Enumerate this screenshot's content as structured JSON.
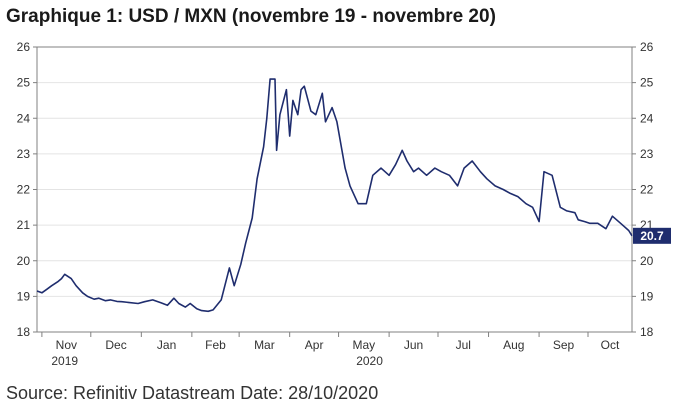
{
  "title": "Graphique 1: USD / MXN (novembre 19 - novembre 20)",
  "source": "Source: Refinitiv Datastream Date: 28/10/2020",
  "colors": {
    "line": "#1f2d6e",
    "grid": "#e4e4e4",
    "axis": "#808080",
    "badge": "#1f2d6e"
  },
  "chart_data": {
    "type": "line",
    "title": "Graphique 1: USD / MXN (novembre 19 - novembre 20)",
    "xlabel": "",
    "ylabel": "",
    "ylim": [
      18,
      26
    ],
    "y_ticks": [
      18,
      19,
      20,
      21,
      22,
      23,
      24,
      25,
      26
    ],
    "y_axes": [
      "left",
      "right"
    ],
    "grid": "horizontal",
    "x_range": [
      "2019-10-29",
      "2020-10-28"
    ],
    "x_ticks": [
      {
        "label": "Nov",
        "date": "2019-11-01"
      },
      {
        "label": "Dec",
        "date": "2019-12-01"
      },
      {
        "label": "Jan",
        "date": "2020-01-01"
      },
      {
        "label": "Feb",
        "date": "2020-02-01"
      },
      {
        "label": "Mar",
        "date": "2020-03-01"
      },
      {
        "label": "Apr",
        "date": "2020-04-01"
      },
      {
        "label": "May",
        "date": "2020-05-01"
      },
      {
        "label": "Jun",
        "date": "2020-06-01"
      },
      {
        "label": "Jul",
        "date": "2020-07-01"
      },
      {
        "label": "Aug",
        "date": "2020-08-01"
      },
      {
        "label": "Sep",
        "date": "2020-09-01"
      },
      {
        "label": "Oct",
        "date": "2020-10-01"
      }
    ],
    "year_labels": [
      {
        "label": "2019",
        "date": "2019-11-15"
      },
      {
        "label": "2020",
        "date": "2020-05-20"
      }
    ],
    "last_value_label": "20.7",
    "series": [
      {
        "x": [
          "2019-10-29",
          "2019-11-01",
          "2019-11-04",
          "2019-11-07",
          "2019-11-11",
          "2019-11-13",
          "2019-11-15",
          "2019-11-19",
          "2019-11-22",
          "2019-11-26",
          "2019-11-29",
          "2019-12-03",
          "2019-12-06",
          "2019-12-10",
          "2019-12-13",
          "2019-12-17",
          "2019-12-20",
          "2019-12-24",
          "2019-12-30",
          "2020-01-03",
          "2020-01-08",
          "2020-01-13",
          "2020-01-17",
          "2020-01-21",
          "2020-01-24",
          "2020-01-28",
          "2020-01-31",
          "2020-02-04",
          "2020-02-07",
          "2020-02-11",
          "2020-02-14",
          "2020-02-19",
          "2020-02-24",
          "2020-02-27",
          "2020-03-02",
          "2020-03-05",
          "2020-03-09",
          "2020-03-12",
          "2020-03-16",
          "2020-03-18",
          "2020-03-20",
          "2020-03-23",
          "2020-03-24",
          "2020-03-26",
          "2020-03-30",
          "2020-04-01",
          "2020-04-03",
          "2020-04-06",
          "2020-04-08",
          "2020-04-10",
          "2020-04-14",
          "2020-04-17",
          "2020-04-21",
          "2020-04-23",
          "2020-04-27",
          "2020-04-30",
          "2020-05-05",
          "2020-05-08",
          "2020-05-13",
          "2020-05-18",
          "2020-05-22",
          "2020-05-27",
          "2020-06-01",
          "2020-06-05",
          "2020-06-09",
          "2020-06-12",
          "2020-06-16",
          "2020-06-19",
          "2020-06-24",
          "2020-06-29",
          "2020-07-03",
          "2020-07-08",
          "2020-07-13",
          "2020-07-17",
          "2020-07-22",
          "2020-07-27",
          "2020-07-31",
          "2020-08-05",
          "2020-08-10",
          "2020-08-14",
          "2020-08-19",
          "2020-08-24",
          "2020-08-28",
          "2020-09-01",
          "2020-09-04",
          "2020-09-09",
          "2020-09-14",
          "2020-09-18",
          "2020-09-23",
          "2020-09-25",
          "2020-09-29",
          "2020-10-02",
          "2020-10-07",
          "2020-10-12",
          "2020-10-16",
          "2020-10-21",
          "2020-10-26",
          "2020-10-28"
        ],
        "y": [
          19.15,
          19.1,
          19.2,
          19.3,
          19.42,
          19.5,
          19.62,
          19.5,
          19.3,
          19.1,
          19.0,
          18.92,
          18.95,
          18.88,
          18.9,
          18.86,
          18.85,
          18.83,
          18.8,
          18.85,
          18.9,
          18.82,
          18.75,
          18.95,
          18.8,
          18.7,
          18.8,
          18.65,
          18.6,
          18.58,
          18.62,
          18.9,
          19.8,
          19.3,
          19.9,
          20.5,
          21.2,
          22.3,
          23.2,
          24.0,
          25.1,
          25.1,
          23.1,
          24.1,
          24.8,
          23.5,
          24.5,
          24.1,
          24.8,
          24.9,
          24.2,
          24.1,
          24.7,
          23.9,
          24.3,
          23.9,
          22.6,
          22.1,
          21.6,
          21.6,
          22.4,
          22.6,
          22.4,
          22.7,
          23.1,
          22.8,
          22.5,
          22.6,
          22.4,
          22.6,
          22.5,
          22.4,
          22.1,
          22.6,
          22.8,
          22.5,
          22.3,
          22.1,
          22.0,
          21.9,
          21.8,
          21.6,
          21.5,
          21.1,
          22.5,
          22.4,
          21.5,
          21.4,
          21.35,
          21.15,
          21.1,
          21.05,
          21.05,
          20.9,
          21.25,
          21.05,
          20.85,
          20.7
        ]
      }
    ]
  }
}
